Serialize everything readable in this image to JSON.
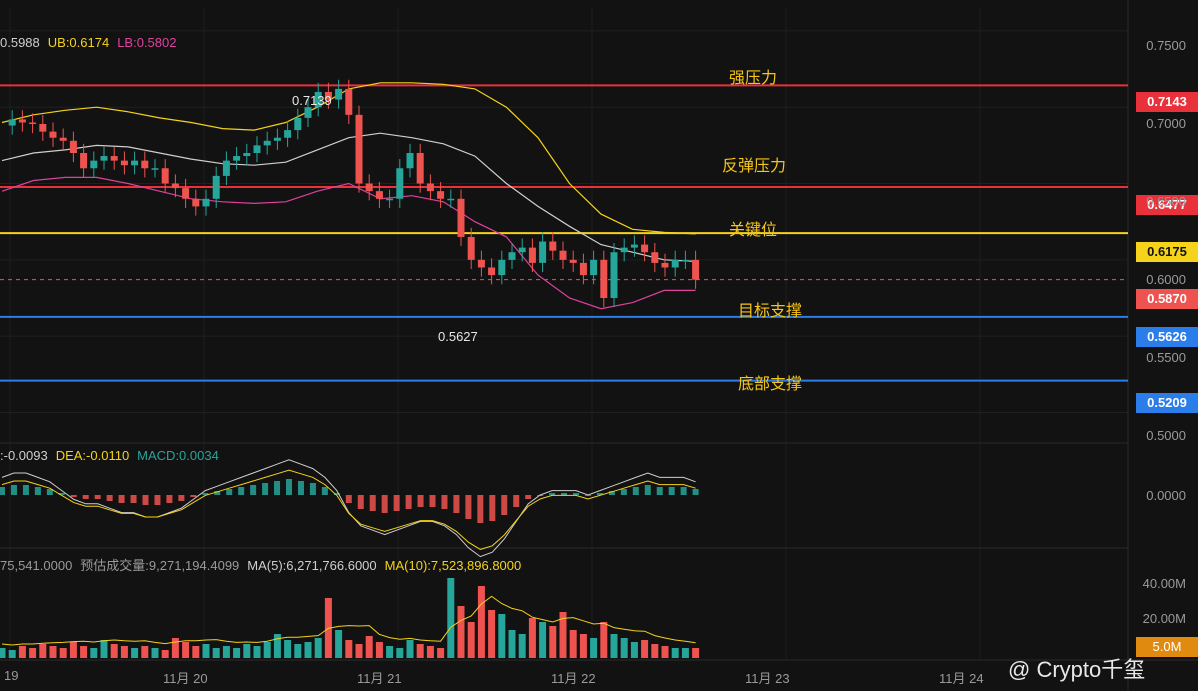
{
  "indicators": {
    "boll": {
      "mid": "0.5988",
      "ub": "UB:0.6174",
      "lb": "LB:0.5802"
    },
    "macd": {
      "dif": ":-0.0093",
      "dea": "DEA:-0.0110",
      "macd": "MACD:0.0034"
    },
    "volume": {
      "vol": "75,541.0000",
      "est": "预估成交量:9,271,194.4099",
      "ma5": "MA(5):6,271,766.6000",
      "ma10": "MA(10):7,523,896.8000"
    }
  },
  "levels": [
    {
      "price": 0.7143,
      "label": "0.7143",
      "color": "#e8313a",
      "zone": "强压力"
    },
    {
      "price": 0.6477,
      "label": "0.6477",
      "color": "#e8313a",
      "zone": "反弹压力"
    },
    {
      "price": 0.6175,
      "label": "0.6175",
      "color": "#f5d31a",
      "zone": "关键位"
    },
    {
      "price": 0.5626,
      "label": "0.5626",
      "color": "#2b7de9",
      "zone": ""
    },
    {
      "price": 0.5209,
      "label": "0.5209",
      "color": "#2b7de9",
      "zone": "底部支撑"
    }
  ],
  "current_price": {
    "price": 0.587,
    "label": "0.5870",
    "zone": "目标支撑"
  },
  "extremes": {
    "high": "0.7139",
    "low": "0.5627"
  },
  "volume_tag": "5.0M",
  "watermark": "@ Crypto千玺",
  "colors": {
    "up": "#26a69a",
    "down": "#ef5350",
    "ub": "#f5d31a",
    "lb": "#e040a0",
    "mid": "#cfcfcf"
  },
  "chart_data": {
    "type": "candlestick",
    "y_ticks": [
      "0.7500",
      "0.7000",
      "0.6500",
      "0.6000",
      "0.5500",
      "0.5000"
    ],
    "y_range": [
      0.48,
      0.765
    ],
    "macd_ticks": [
      "0.0000"
    ],
    "volume_ticks": [
      "40.00M",
      "20.00M"
    ],
    "x_ticks": [
      "19",
      "11月 20",
      "11月 21",
      "11月 22",
      "11月 23",
      "11月 24"
    ],
    "close_path": [
      0.688,
      0.692,
      0.69,
      0.689,
      0.684,
      0.68,
      0.678,
      0.67,
      0.66,
      0.665,
      0.668,
      0.665,
      0.662,
      0.665,
      0.66,
      0.66,
      0.65,
      0.647,
      0.64,
      0.635,
      0.64,
      0.655,
      0.665,
      0.668,
      0.67,
      0.675,
      0.678,
      0.68,
      0.685,
      0.693,
      0.7,
      0.71,
      0.705,
      0.712,
      0.695,
      0.65,
      0.645,
      0.64,
      0.64,
      0.66,
      0.67,
      0.65,
      0.645,
      0.64,
      0.64,
      0.615,
      0.6,
      0.595,
      0.59,
      0.6,
      0.605,
      0.608,
      0.598,
      0.612,
      0.606,
      0.6,
      0.598,
      0.59,
      0.6,
      0.575,
      0.605,
      0.608,
      0.61,
      0.605,
      0.598,
      0.595,
      0.6,
      0.6,
      0.587
    ],
    "ub_path": [
      0.69,
      0.695,
      0.698,
      0.7,
      0.697,
      0.693,
      0.69,
      0.686,
      0.685,
      0.69,
      0.7,
      0.712,
      0.716,
      0.716,
      0.715,
      0.712,
      0.7,
      0.68,
      0.65,
      0.63,
      0.62,
      0.618,
      0.617
    ],
    "mid_path": [
      0.665,
      0.67,
      0.672,
      0.675,
      0.674,
      0.67,
      0.666,
      0.663,
      0.662,
      0.664,
      0.672,
      0.68,
      0.683,
      0.68,
      0.676,
      0.668,
      0.65,
      0.635,
      0.622,
      0.61,
      0.605,
      0.6,
      0.599
    ],
    "lb_path": [
      0.645,
      0.652,
      0.654,
      0.654,
      0.65,
      0.645,
      0.64,
      0.638,
      0.637,
      0.638,
      0.645,
      0.65,
      0.64,
      0.642,
      0.638,
      0.625,
      0.615,
      0.59,
      0.575,
      0.568,
      0.572,
      0.58,
      0.58
    ],
    "volume_path": [
      5,
      4,
      6,
      5,
      7,
      6,
      5,
      8,
      6,
      5,
      9,
      7,
      6,
      5,
      6,
      5,
      4,
      10,
      8,
      6,
      7,
      5,
      6,
      5,
      7,
      6,
      8,
      12,
      9,
      7,
      8,
      10,
      30,
      14,
      9,
      7,
      11,
      8,
      6,
      5,
      9,
      7,
      6,
      5,
      40,
      26,
      18,
      36,
      24,
      22,
      14,
      12,
      20,
      18,
      16,
      23,
      14,
      12,
      10,
      18,
      12,
      10,
      8,
      9,
      7,
      6,
      5,
      5,
      5
    ],
    "macd_path": [
      0.004,
      0.005,
      0.005,
      0.004,
      0.003,
      0.001,
      -0.001,
      -0.002,
      -0.002,
      -0.003,
      -0.004,
      -0.004,
      -0.005,
      -0.005,
      -0.004,
      -0.003,
      -0.001,
      0.001,
      0.002,
      0.003,
      0.004,
      0.005,
      0.006,
      0.007,
      0.008,
      0.007,
      0.006,
      0.004,
      0.001,
      -0.004,
      -0.007,
      -0.008,
      -0.009,
      -0.008,
      -0.007,
      -0.006,
      -0.006,
      -0.007,
      -0.009,
      -0.012,
      -0.014,
      -0.013,
      -0.01,
      -0.006,
      -0.002,
      0.0,
      0.001,
      0.001,
      0.001,
      0.0,
      0.001,
      0.002,
      0.003,
      0.004,
      0.005,
      0.004,
      0.004,
      0.004,
      0.003
    ]
  }
}
